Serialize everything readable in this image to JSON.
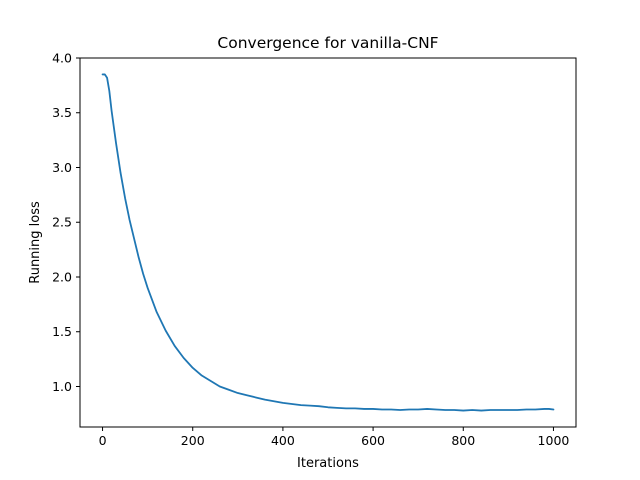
{
  "chart_data": {
    "type": "line",
    "title": "Convergence for vanilla-CNF",
    "xlabel": "Iterations",
    "ylabel": "Running loss",
    "xlim": [
      -50,
      1050
    ],
    "ylim": [
      0.63,
      4.0
    ],
    "grid": false,
    "legend": "none",
    "x_ticks": [
      0,
      200,
      400,
      600,
      800,
      1000
    ],
    "x_tick_labels": [
      "0",
      "200",
      "400",
      "600",
      "800",
      "1000"
    ],
    "y_ticks": [
      1.0,
      1.5,
      2.0,
      2.5,
      3.0,
      3.5,
      4.0
    ],
    "y_tick_labels": [
      "1.0",
      "1.5",
      "2.0",
      "2.5",
      "3.0",
      "3.5",
      "4.0"
    ],
    "series": [
      {
        "color": "#1f77b4",
        "x": [
          0,
          5,
          10,
          15,
          20,
          30,
          40,
          50,
          60,
          70,
          80,
          90,
          100,
          120,
          140,
          160,
          180,
          200,
          220,
          240,
          260,
          280,
          300,
          320,
          340,
          360,
          380,
          400,
          420,
          440,
          460,
          480,
          500,
          520,
          540,
          560,
          580,
          600,
          620,
          640,
          660,
          680,
          700,
          720,
          740,
          760,
          780,
          800,
          820,
          840,
          860,
          880,
          900,
          920,
          940,
          960,
          980,
          990,
          1000
        ],
        "y": [
          3.85,
          3.85,
          3.82,
          3.7,
          3.52,
          3.22,
          2.95,
          2.72,
          2.52,
          2.35,
          2.18,
          2.03,
          1.9,
          1.68,
          1.51,
          1.37,
          1.26,
          1.17,
          1.1,
          1.05,
          1.0,
          0.97,
          0.94,
          0.92,
          0.9,
          0.88,
          0.865,
          0.85,
          0.84,
          0.83,
          0.825,
          0.82,
          0.81,
          0.805,
          0.8,
          0.8,
          0.795,
          0.795,
          0.79,
          0.79,
          0.785,
          0.79,
          0.79,
          0.795,
          0.79,
          0.785,
          0.785,
          0.78,
          0.785,
          0.78,
          0.785,
          0.785,
          0.785,
          0.785,
          0.79,
          0.79,
          0.795,
          0.795,
          0.79
        ]
      }
    ]
  }
}
